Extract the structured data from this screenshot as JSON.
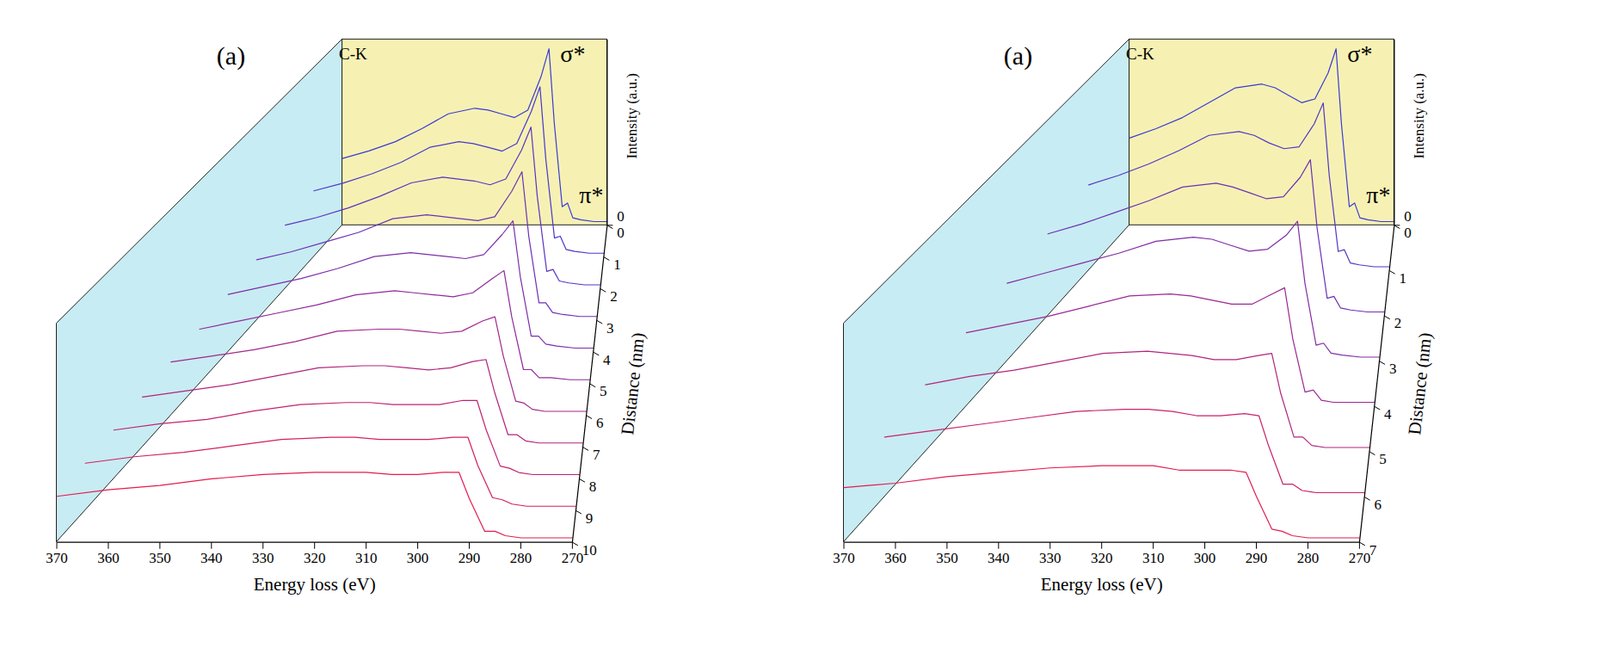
{
  "chart_data": [
    {
      "type": "waterfall",
      "title": "(a)",
      "x_label": "Energy loss (eV)",
      "y_label": "Distance (nm)",
      "z_label": "Intensity (a.u.)",
      "annotations": [
        {
          "text": "C-K",
          "x": 366,
          "z": 0.92
        },
        {
          "text": "σ*",
          "x": 283,
          "z": 0.92
        },
        {
          "text": "π*",
          "x": 276,
          "z": 0.16
        }
      ],
      "xlim": [
        370,
        270
      ],
      "xticks": [
        370,
        360,
        350,
        340,
        330,
        320,
        310,
        300,
        290,
        280,
        270
      ],
      "ylim": [
        0,
        10
      ],
      "yticks": [
        0,
        1,
        2,
        3,
        4,
        5,
        6,
        7,
        8,
        9,
        10
      ],
      "zlim": [
        0,
        1
      ],
      "zticks": [
        0
      ],
      "x": [
        270,
        275,
        280,
        283,
        285,
        287,
        290,
        292,
        295,
        300,
        305,
        310,
        315,
        320,
        330,
        340,
        350,
        360,
        370
      ],
      "series": [
        {
          "distance": 0,
          "color": "#3a3ad6",
          "values": [
            0.02,
            0.02,
            0.03,
            0.04,
            0.12,
            0.1,
            0.55,
            0.95,
            0.8,
            0.62,
            0.58,
            0.6,
            0.62,
            0.63,
            0.6,
            0.52,
            0.45,
            0.4,
            0.36
          ]
        },
        {
          "distance": 1,
          "color": "#4a37cc",
          "values": [
            0.02,
            0.02,
            0.03,
            0.04,
            0.11,
            0.1,
            0.52,
            0.9,
            0.77,
            0.6,
            0.56,
            0.58,
            0.6,
            0.61,
            0.58,
            0.5,
            0.44,
            0.39,
            0.35
          ]
        },
        {
          "distance": 2,
          "color": "#5b34c1",
          "values": [
            0.02,
            0.02,
            0.03,
            0.04,
            0.1,
            0.09,
            0.48,
            0.84,
            0.72,
            0.57,
            0.54,
            0.56,
            0.57,
            0.58,
            0.55,
            0.48,
            0.42,
            0.37,
            0.33
          ]
        },
        {
          "distance": 3,
          "color": "#6c31b5",
          "values": [
            0.02,
            0.02,
            0.03,
            0.04,
            0.09,
            0.09,
            0.43,
            0.76,
            0.66,
            0.53,
            0.51,
            0.52,
            0.53,
            0.54,
            0.52,
            0.45,
            0.4,
            0.35,
            0.31
          ]
        },
        {
          "distance": 4,
          "color": "#7d2ea8",
          "values": [
            0.02,
            0.02,
            0.03,
            0.04,
            0.08,
            0.08,
            0.38,
            0.66,
            0.59,
            0.49,
            0.47,
            0.48,
            0.49,
            0.5,
            0.48,
            0.42,
            0.37,
            0.33,
            0.29
          ]
        },
        {
          "distance": 5,
          "color": "#8f2b9b",
          "values": [
            0.02,
            0.02,
            0.03,
            0.03,
            0.07,
            0.07,
            0.33,
            0.56,
            0.52,
            0.45,
            0.43,
            0.44,
            0.45,
            0.46,
            0.44,
            0.39,
            0.35,
            0.31,
            0.27
          ]
        },
        {
          "distance": 6,
          "color": "#a0288d",
          "values": [
            0.02,
            0.02,
            0.02,
            0.03,
            0.06,
            0.07,
            0.29,
            0.48,
            0.46,
            0.41,
            0.4,
            0.41,
            0.42,
            0.42,
            0.41,
            0.36,
            0.32,
            0.29,
            0.26
          ]
        },
        {
          "distance": 7,
          "color": "#b1257e",
          "values": [
            0.02,
            0.02,
            0.02,
            0.03,
            0.06,
            0.06,
            0.26,
            0.42,
            0.41,
            0.38,
            0.37,
            0.38,
            0.39,
            0.39,
            0.38,
            0.34,
            0.3,
            0.27,
            0.24
          ]
        },
        {
          "distance": 8,
          "color": "#c2226f",
          "values": [
            0.02,
            0.02,
            0.02,
            0.03,
            0.05,
            0.06,
            0.23,
            0.37,
            0.37,
            0.35,
            0.35,
            0.35,
            0.36,
            0.36,
            0.35,
            0.32,
            0.28,
            0.26,
            0.23
          ]
        },
        {
          "distance": 9,
          "color": "#d31f5f",
          "values": [
            0.02,
            0.02,
            0.02,
            0.03,
            0.05,
            0.06,
            0.21,
            0.34,
            0.34,
            0.33,
            0.33,
            0.33,
            0.34,
            0.34,
            0.33,
            0.3,
            0.27,
            0.25,
            0.22
          ]
        },
        {
          "distance": 10,
          "color": "#e41c4f",
          "values": [
            0.02,
            0.02,
            0.02,
            0.03,
            0.05,
            0.05,
            0.2,
            0.32,
            0.32,
            0.31,
            0.31,
            0.32,
            0.32,
            0.32,
            0.31,
            0.29,
            0.26,
            0.24,
            0.21
          ]
        }
      ]
    },
    {
      "type": "waterfall",
      "title": "(a)",
      "x_label": "Energy loss (eV)",
      "y_label": "Distance (nm)",
      "z_label": "Intensity (a.u.)",
      "annotations": [
        {
          "text": "C-K",
          "x": 366,
          "z": 0.92
        },
        {
          "text": "σ*",
          "x": 283,
          "z": 0.92
        },
        {
          "text": "π*",
          "x": 276,
          "z": 0.16
        }
      ],
      "xlim": [
        370,
        270
      ],
      "xticks": [
        370,
        360,
        350,
        340,
        330,
        320,
        310,
        300,
        290,
        280,
        270
      ],
      "ylim": [
        0,
        7
      ],
      "yticks": [
        0,
        1,
        2,
        3,
        4,
        5,
        6,
        7
      ],
      "zlim": [
        0,
        1
      ],
      "zticks": [
        0
      ],
      "x": [
        270,
        275,
        280,
        283,
        285,
        287,
        290,
        292,
        295,
        300,
        305,
        310,
        315,
        320,
        330,
        340,
        350,
        360,
        370
      ],
      "series": [
        {
          "distance": 0,
          "color": "#3a3ad6",
          "values": [
            0.02,
            0.02,
            0.03,
            0.04,
            0.12,
            0.1,
            0.55,
            0.95,
            0.82,
            0.68,
            0.66,
            0.7,
            0.74,
            0.76,
            0.74,
            0.66,
            0.58,
            0.52,
            0.47
          ]
        },
        {
          "distance": 1,
          "color": "#5235c6",
          "values": [
            0.02,
            0.02,
            0.03,
            0.04,
            0.11,
            0.1,
            0.5,
            0.88,
            0.77,
            0.65,
            0.64,
            0.67,
            0.71,
            0.73,
            0.71,
            0.63,
            0.56,
            0.5,
            0.45
          ]
        },
        {
          "distance": 2,
          "color": "#6a31b6",
          "values": [
            0.02,
            0.02,
            0.03,
            0.04,
            0.1,
            0.09,
            0.45,
            0.8,
            0.71,
            0.61,
            0.6,
            0.63,
            0.66,
            0.68,
            0.66,
            0.59,
            0.53,
            0.47,
            0.42
          ]
        },
        {
          "distance": 3,
          "color": "#822da4",
          "values": [
            0.02,
            0.02,
            0.03,
            0.04,
            0.09,
            0.08,
            0.39,
            0.7,
            0.63,
            0.56,
            0.55,
            0.58,
            0.61,
            0.62,
            0.6,
            0.54,
            0.49,
            0.44,
            0.39
          ]
        },
        {
          "distance": 4,
          "color": "#9a2992",
          "values": [
            0.02,
            0.02,
            0.02,
            0.03,
            0.08,
            0.07,
            0.33,
            0.58,
            0.55,
            0.5,
            0.5,
            0.52,
            0.54,
            0.55,
            0.54,
            0.49,
            0.44,
            0.4,
            0.36
          ]
        },
        {
          "distance": 5,
          "color": "#b2257e",
          "values": [
            0.02,
            0.02,
            0.02,
            0.03,
            0.07,
            0.07,
            0.28,
            0.47,
            0.46,
            0.44,
            0.44,
            0.46,
            0.47,
            0.48,
            0.47,
            0.43,
            0.39,
            0.36,
            0.32
          ]
        },
        {
          "distance": 6,
          "color": "#ca2169",
          "values": [
            0.02,
            0.02,
            0.02,
            0.03,
            0.06,
            0.06,
            0.24,
            0.38,
            0.39,
            0.38,
            0.38,
            0.4,
            0.41,
            0.41,
            0.4,
            0.37,
            0.34,
            0.31,
            0.28
          ]
        },
        {
          "distance": 7,
          "color": "#e21d53",
          "values": [
            0.02,
            0.02,
            0.02,
            0.03,
            0.05,
            0.06,
            0.21,
            0.32,
            0.33,
            0.33,
            0.33,
            0.35,
            0.35,
            0.35,
            0.34,
            0.32,
            0.3,
            0.27,
            0.25
          ]
        }
      ]
    }
  ]
}
